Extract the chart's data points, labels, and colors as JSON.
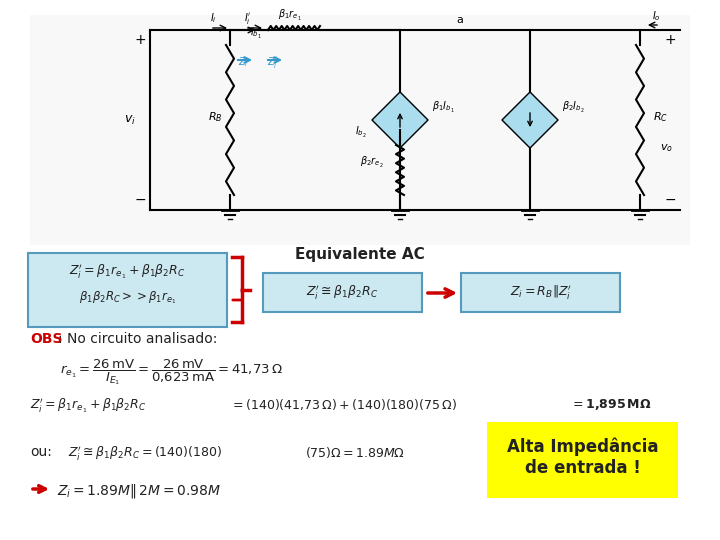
{
  "title": "Equivalente AC",
  "obs_text": "OBS: No circuito analisado:",
  "obs_bold": "OBS",
  "formula1_top": "$Z_i^\\prime = \\beta_1 r_{e_1} + \\beta_1 \\beta_2 R_C$",
  "formula1_bot": "$\\beta_1 \\beta_2 R_C >> \\beta_1 r_{e_1}$",
  "formula2": "$Z_i^\\prime \\cong \\beta_1 \\beta_2 R_C$",
  "formula3": "$Z_i = R_B \\| Z_i^\\prime$",
  "re1_line": "$r_{e_1} = \\dfrac{26\\,\\mathrm{mV}}{I_{E_1}} = \\dfrac{26\\,\\mathrm{mV}}{0{,}623\\,\\mathrm{mA}} = 41{,}73\\,\\Omega$",
  "zi_line": "$Z_i^\\prime = \\beta_1 r_{e_1} + \\beta_1 \\beta_2 R_C \\;\\;\\; = (140)(41{,}73\\,\\Omega) + (140)(180)(75\\,\\Omega) \\;\\;\\; = 1{,}895\\,\\mathrm{M}\\Omega$",
  "ou_text": "ou:",
  "ou_formula": "$Z_i^\\prime \\cong \\beta_1 \\beta_2 R_C = (140)(180)$",
  "ou_highlight": "(75)\\Omega = 1.89M\\Omega",
  "zi_final": "$Z_i = 1.89M\\|\\,2M = 0.98M$",
  "yellow_box_line1": "Alta Impedância",
  "yellow_box_line2": "de entrada !",
  "bg_color": "#ffffff",
  "box_color": "#cce8f0",
  "yellow_color": "#ffff00",
  "red_color": "#cc0000",
  "obs_color": "#cc0000",
  "dark_color": "#222222"
}
